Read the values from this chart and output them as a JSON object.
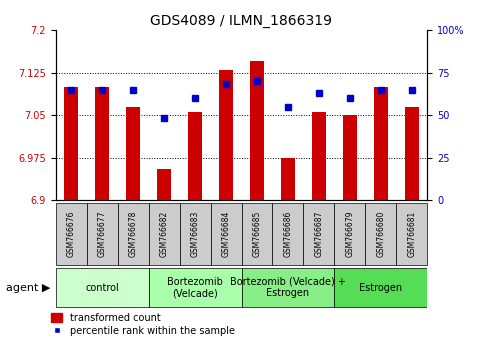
{
  "title": "GDS4089 / ILMN_1866319",
  "samples": [
    "GSM766676",
    "GSM766677",
    "GSM766678",
    "GSM766682",
    "GSM766683",
    "GSM766684",
    "GSM766685",
    "GSM766686",
    "GSM766687",
    "GSM766679",
    "GSM766680",
    "GSM766681"
  ],
  "red_values": [
    7.1,
    7.1,
    7.065,
    6.955,
    7.055,
    7.13,
    7.145,
    6.975,
    7.055,
    7.05,
    7.1,
    7.065
  ],
  "blue_values": [
    65,
    65,
    65,
    48,
    60,
    68,
    70,
    55,
    63,
    60,
    65,
    65
  ],
  "ymin": 6.9,
  "ymax": 7.2,
  "y_ticks": [
    6.9,
    6.975,
    7.05,
    7.125,
    7.2
  ],
  "y_ticks_right": [
    0,
    25,
    50,
    75,
    100
  ],
  "groups": [
    {
      "label": "control",
      "start": 0,
      "end": 3,
      "color": "#ccffcc"
    },
    {
      "label": "Bortezomib\n(Velcade)",
      "start": 3,
      "end": 6,
      "color": "#aaffaa"
    },
    {
      "label": "Bortezomib (Velcade) +\nEstrogen",
      "start": 6,
      "end": 9,
      "color": "#88ee88"
    },
    {
      "label": "Estrogen",
      "start": 9,
      "end": 12,
      "color": "#55dd55"
    }
  ],
  "bar_color": "#cc0000",
  "dot_color": "#0000cc",
  "bar_bottom": 6.9,
  "legend_bar_label": "transformed count",
  "legend_dot_label": "percentile rank within the sample",
  "xlabel": "agent",
  "right_axis_color": "#0000cc",
  "left_axis_color": "#cc0000",
  "sample_box_color": "#cccccc",
  "title_fontsize": 10,
  "tick_fontsize": 7,
  "sample_fontsize": 5.5,
  "group_fontsize": 7,
  "legend_fontsize": 7
}
